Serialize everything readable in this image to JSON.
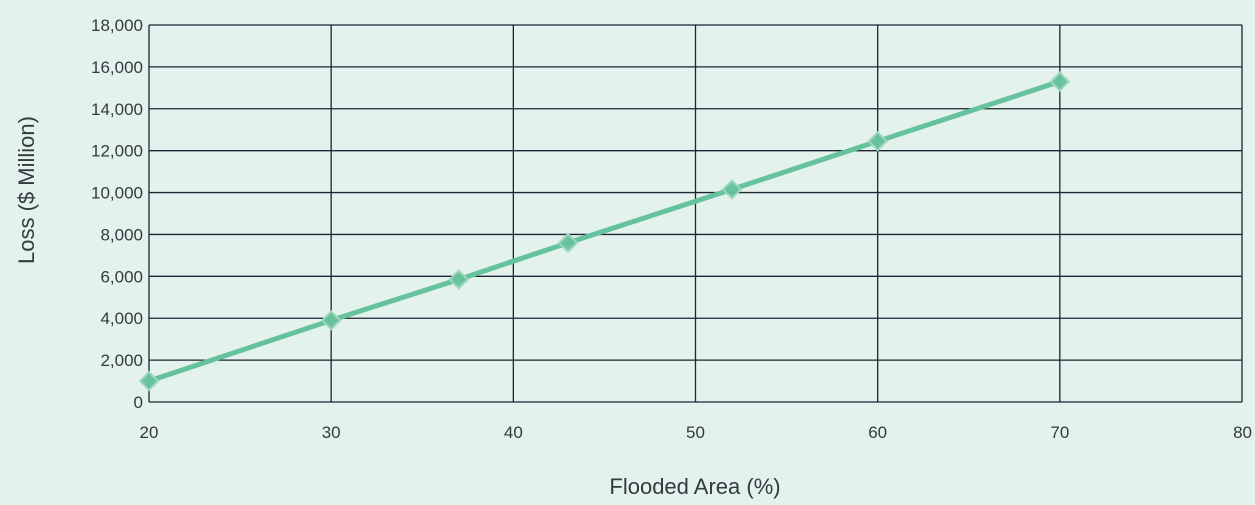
{
  "chart_data": {
    "type": "line",
    "title": "",
    "xlabel": "Flooded Area (%)",
    "ylabel": "Loss ($ Million)",
    "xlim": [
      20,
      80
    ],
    "ylim": [
      0,
      18000
    ],
    "x_ticks": [
      20,
      30,
      40,
      50,
      60,
      70,
      80
    ],
    "y_ticks": [
      0,
      2000,
      4000,
      6000,
      8000,
      10000,
      12000,
      14000,
      16000,
      18000
    ],
    "x_tick_labels": [
      "20",
      "30",
      "40",
      "50",
      "60",
      "70",
      "80"
    ],
    "y_tick_labels": [
      "0",
      "2,000",
      "4,000",
      "6,000",
      "8,000",
      "10,000",
      "12,000",
      "14,000",
      "16,000",
      "18,000"
    ],
    "grid": true,
    "series": [
      {
        "x": [
          20,
          30,
          37,
          43,
          52,
          60,
          70
        ],
        "y": [
          1000,
          3900,
          5850,
          7600,
          10150,
          12450,
          15300
        ],
        "color": "#66c29c",
        "marker": "diamond"
      }
    ]
  }
}
